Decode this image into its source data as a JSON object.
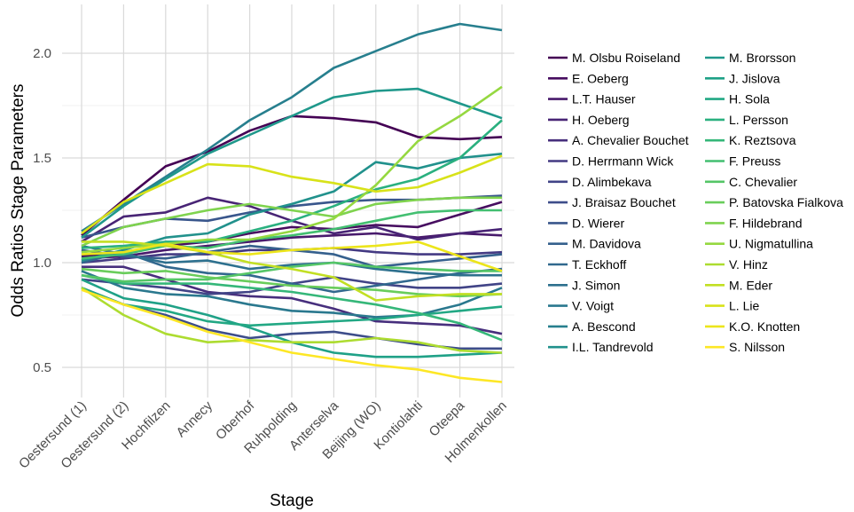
{
  "chart_data": {
    "type": "line",
    "title": "",
    "xlabel": "Stage",
    "ylabel": "Odds Ratios Stage Parameters",
    "categories": [
      "Oestersund (1)",
      "Oestersund (2)",
      "Hochfilzen",
      "Annecy",
      "Oberhof",
      "Ruhpolding",
      "Anterselva",
      "Beijing (WO)",
      "Kontiolahti",
      "Oteepa",
      "Holmenkollen"
    ],
    "ylim": [
      0.35,
      2.2
    ],
    "yticks": [
      0.5,
      1.0,
      1.5,
      2.0
    ],
    "ytick_labels": [
      "0.5",
      "1.0",
      "1.5",
      "2.0"
    ],
    "grid": true,
    "legend_position": "right",
    "series": [
      {
        "name": "M. Olsbu Roiseland",
        "color": "#440154",
        "values": [
          1.13,
          1.3,
          1.46,
          1.53,
          1.63,
          1.7,
          1.69,
          1.67,
          1.6,
          1.59,
          1.6
        ]
      },
      {
        "name": "E. Oeberg",
        "color": "#470d60",
        "values": [
          1.03,
          1.05,
          1.08,
          1.1,
          1.14,
          1.17,
          1.16,
          1.18,
          1.17,
          1.23,
          1.29
        ]
      },
      {
        "name": "L.T. Hauser",
        "color": "#481a6c",
        "values": [
          1.02,
          1.03,
          1.06,
          1.08,
          1.1,
          1.12,
          1.13,
          1.14,
          1.12,
          1.14,
          1.13
        ]
      },
      {
        "name": "H. Oeberg",
        "color": "#482475",
        "values": [
          1.1,
          1.22,
          1.24,
          1.31,
          1.27,
          1.2,
          1.14,
          1.17,
          1.11,
          1.14,
          1.16
        ]
      },
      {
        "name": "A. Chevalier Bouchet",
        "color": "#472f7d",
        "values": [
          0.98,
          0.98,
          0.92,
          0.86,
          0.84,
          0.83,
          0.78,
          0.72,
          0.71,
          0.7,
          0.66
        ]
      },
      {
        "name": "D. Herrmann Wick",
        "color": "#443a83",
        "values": [
          1.0,
          1.02,
          1.04,
          1.04,
          1.06,
          1.06,
          1.07,
          1.05,
          1.04,
          1.04,
          1.05
        ]
      },
      {
        "name": "D. Alimbekava",
        "color": "#414487",
        "values": [
          0.92,
          0.9,
          0.88,
          0.85,
          0.86,
          0.9,
          0.93,
          0.9,
          0.88,
          0.88,
          0.9
        ]
      },
      {
        "name": "J. Braisaz Bouchet",
        "color": "#3d4d8a",
        "values": [
          0.88,
          0.8,
          0.75,
          0.68,
          0.64,
          0.66,
          0.67,
          0.64,
          0.61,
          0.59,
          0.59
        ]
      },
      {
        "name": "D. Wierer",
        "color": "#39568c",
        "values": [
          1.12,
          1.17,
          1.21,
          1.2,
          1.24,
          1.27,
          1.29,
          1.3,
          1.3,
          1.31,
          1.32
        ]
      },
      {
        "name": "M. Davidova",
        "color": "#35608d",
        "values": [
          1.06,
          1.03,
          1.02,
          1.05,
          1.08,
          1.06,
          1.04,
          0.98,
          1.0,
          1.02,
          1.04
        ]
      },
      {
        "name": "T. Eckhoff",
        "color": "#31688e",
        "values": [
          1.0,
          1.05,
          0.98,
          0.95,
          0.94,
          0.9,
          0.86,
          0.89,
          0.92,
          0.95,
          0.97
        ]
      },
      {
        "name": "J. Simon",
        "color": "#2d708e",
        "values": [
          1.08,
          1.04,
          1.0,
          1.01,
          0.97,
          0.99,
          1.0,
          0.97,
          0.95,
          0.94,
          0.94
        ]
      },
      {
        "name": "V. Voigt",
        "color": "#2a788e",
        "values": [
          0.96,
          0.88,
          0.85,
          0.84,
          0.8,
          0.77,
          0.76,
          0.74,
          0.75,
          0.8,
          0.88
        ]
      },
      {
        "name": "A. Bescond",
        "color": "#277f8e",
        "values": [
          1.15,
          1.28,
          1.41,
          1.54,
          1.68,
          1.79,
          1.93,
          2.01,
          2.09,
          2.14,
          2.11
        ]
      },
      {
        "name": "I.L. Tandrevold",
        "color": "#21918c",
        "values": [
          1.01,
          1.06,
          1.12,
          1.14,
          1.23,
          1.28,
          1.34,
          1.48,
          1.45,
          1.5,
          1.52
        ]
      },
      {
        "name": "M. Brorsson",
        "color": "#1f988b",
        "values": [
          1.12,
          1.27,
          1.4,
          1.52,
          1.61,
          1.7,
          1.79,
          1.82,
          1.83,
          1.76,
          1.69
        ]
      },
      {
        "name": "J. Jislova",
        "color": "#1fa187",
        "values": [
          0.92,
          0.83,
          0.8,
          0.75,
          0.69,
          0.62,
          0.57,
          0.55,
          0.55,
          0.56,
          0.57
        ]
      },
      {
        "name": "H. Sola",
        "color": "#22a884",
        "values": [
          0.88,
          0.8,
          0.77,
          0.72,
          0.7,
          0.71,
          0.72,
          0.73,
          0.75,
          0.77,
          0.79
        ]
      },
      {
        "name": "L. Persson",
        "color": "#2ab07f",
        "values": [
          1.07,
          1.08,
          1.1,
          1.1,
          1.15,
          1.2,
          1.27,
          1.35,
          1.4,
          1.5,
          1.68
        ]
      },
      {
        "name": "K. Reztsova",
        "color": "#35b779",
        "values": [
          0.94,
          0.9,
          0.9,
          0.9,
          0.88,
          0.86,
          0.83,
          0.8,
          0.76,
          0.71,
          0.63
        ]
      },
      {
        "name": "F. Preuss",
        "color": "#43bf71",
        "values": [
          1.02,
          1.04,
          1.08,
          1.07,
          1.11,
          1.13,
          1.16,
          1.2,
          1.24,
          1.25,
          1.25
        ]
      },
      {
        "name": "C. Chevalier",
        "color": "#55c667",
        "values": [
          0.94,
          0.91,
          0.92,
          0.92,
          0.95,
          0.98,
          1.0,
          0.98,
          0.97,
          0.96,
          0.96
        ]
      },
      {
        "name": "P. Batovska Fialkova",
        "color": "#69cd5b",
        "values": [
          0.97,
          0.95,
          0.96,
          0.93,
          0.91,
          0.89,
          0.88,
          0.87,
          0.85,
          0.84,
          0.85
        ]
      },
      {
        "name": "F. Hildebrand",
        "color": "#7fd34e",
        "values": [
          1.08,
          1.17,
          1.21,
          1.25,
          1.28,
          1.25,
          1.22,
          1.28,
          1.3,
          1.31,
          1.31
        ]
      },
      {
        "name": "U. Nigmatullina",
        "color": "#95d840",
        "values": [
          1.05,
          1.07,
          1.09,
          1.11,
          1.11,
          1.15,
          1.21,
          1.37,
          1.58,
          1.7,
          1.84
        ]
      },
      {
        "name": "V. Hinz",
        "color": "#addc30",
        "values": [
          0.88,
          0.75,
          0.66,
          0.62,
          0.63,
          0.62,
          0.62,
          0.64,
          0.62,
          0.58,
          0.57
        ]
      },
      {
        "name": "M. Eder",
        "color": "#c2df23",
        "values": [
          1.1,
          1.1,
          1.08,
          1.05,
          1.0,
          0.97,
          0.93,
          0.82,
          0.84,
          0.85,
          0.85
        ]
      },
      {
        "name": "L. Lie",
        "color": "#d8e219",
        "values": [
          1.14,
          1.29,
          1.38,
          1.47,
          1.46,
          1.41,
          1.38,
          1.34,
          1.36,
          1.43,
          1.51
        ]
      },
      {
        "name": "K.O. Knotten",
        "color": "#ece51b",
        "values": [
          1.04,
          1.05,
          1.09,
          1.05,
          1.04,
          1.06,
          1.07,
          1.08,
          1.1,
          1.03,
          0.96
        ]
      },
      {
        "name": "S. Nilsson",
        "color": "#fde725",
        "values": [
          0.87,
          0.8,
          0.74,
          0.67,
          0.62,
          0.57,
          0.54,
          0.51,
          0.49,
          0.45,
          0.43
        ]
      }
    ]
  }
}
